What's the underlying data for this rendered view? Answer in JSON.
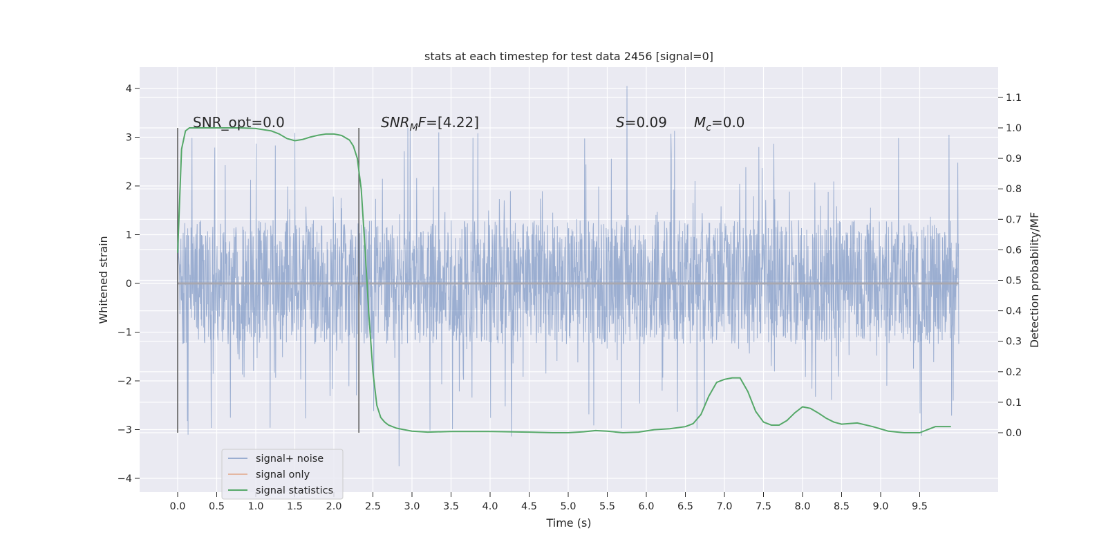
{
  "chart_data": {
    "type": "line",
    "title": "stats at each timestep for test data 2456 [signal=0]",
    "xlabel": "Time (s)",
    "ylabel_left": "Whitened strain",
    "ylabel_right": "Detection probability/MF",
    "xlim": [
      -0.48,
      10.48
    ],
    "ylim_left": [
      -4.35,
      4.35
    ],
    "ylim_right": [
      -0.2,
      1.19
    ],
    "x_ticks": [
      0.0,
      0.5,
      1.0,
      1.5,
      2.0,
      2.5,
      3.0,
      3.5,
      4.0,
      4.5,
      5.0,
      5.5,
      6.0,
      6.5,
      7.0,
      7.5,
      8.0,
      8.5,
      9.0,
      9.5
    ],
    "x_tick_labels": [
      "0.0",
      "0.5",
      "1.0",
      "1.5",
      "2.0",
      "2.5",
      "3.0",
      "3.5",
      "4.0",
      "4.5",
      "5.0",
      "5.5",
      "6.0",
      "6.5",
      "7.0",
      "7.5",
      "8.0",
      "8.5",
      "9.0",
      "9.5"
    ],
    "y_left_ticks": [
      -4,
      -3,
      -2,
      -1,
      0,
      1,
      2,
      3,
      4
    ],
    "y_left_tick_labels": [
      "−4",
      "−3",
      "−2",
      "−1",
      "0",
      "1",
      "2",
      "3",
      "4"
    ],
    "y_right_ticks": [
      0.0,
      0.1,
      0.2,
      0.3,
      0.4,
      0.5,
      0.6,
      0.7,
      0.8,
      0.9,
      1.0,
      1.1
    ],
    "y_right_tick_labels": [
      "0.0",
      "0.1",
      "0.2",
      "0.3",
      "0.4",
      "0.5",
      "0.6",
      "0.7",
      "0.8",
      "0.9",
      "1.0",
      "1.1"
    ],
    "grid": true,
    "legend_placement": "lower-left",
    "series": [
      {
        "name": "signal+ noise",
        "color": "#4c72b0",
        "kind": "noise",
        "time_range": [
          0.0,
          10.0
        ],
        "typical_range": [
          -1.25,
          1.3
        ],
        "max": 4.05,
        "min": -3.75
      },
      {
        "name": "signal only",
        "color": "#dd8452",
        "kind": "line",
        "x": [
          0.0,
          10.0
        ],
        "y": [
          0.0,
          0.0
        ]
      },
      {
        "name": "signal statistics",
        "color": "#55a868",
        "kind": "line",
        "axis": "right",
        "x": [
          0.0,
          0.05,
          0.1,
          0.15,
          0.25,
          0.4,
          0.6,
          0.8,
          1.0,
          1.2,
          1.3,
          1.4,
          1.5,
          1.6,
          1.7,
          1.8,
          1.9,
          2.0,
          2.1,
          2.2,
          2.25,
          2.3,
          2.35,
          2.4,
          2.45,
          2.5,
          2.55,
          2.6,
          2.65,
          2.7,
          2.8,
          2.9,
          3.0,
          3.2,
          3.5,
          4.0,
          4.5,
          4.8,
          5.0,
          5.2,
          5.35,
          5.5,
          5.7,
          5.9,
          6.1,
          6.3,
          6.5,
          6.6,
          6.7,
          6.8,
          6.9,
          7.0,
          7.1,
          7.2,
          7.3,
          7.4,
          7.5,
          7.6,
          7.7,
          7.8,
          7.9,
          8.0,
          8.1,
          8.2,
          8.3,
          8.4,
          8.5,
          8.6,
          8.7,
          8.9,
          9.1,
          9.3,
          9.5,
          9.6,
          9.7,
          9.8,
          9.9
        ],
        "y": [
          0.59,
          0.93,
          0.99,
          1.0,
          1.0,
          1.0,
          1.0,
          1.0,
          0.998,
          0.99,
          0.98,
          0.965,
          0.958,
          0.962,
          0.97,
          0.976,
          0.98,
          0.98,
          0.975,
          0.96,
          0.94,
          0.9,
          0.8,
          0.6,
          0.38,
          0.2,
          0.09,
          0.05,
          0.035,
          0.025,
          0.015,
          0.01,
          0.005,
          0.002,
          0.004,
          0.004,
          0.002,
          0.0,
          0.0,
          0.003,
          0.007,
          0.005,
          0.0,
          0.002,
          0.01,
          0.013,
          0.02,
          0.03,
          0.06,
          0.12,
          0.165,
          0.175,
          0.18,
          0.18,
          0.135,
          0.07,
          0.035,
          0.025,
          0.025,
          0.04,
          0.065,
          0.085,
          0.08,
          0.065,
          0.048,
          0.035,
          0.028,
          0.03,
          0.032,
          0.02,
          0.005,
          0.0,
          0.0,
          0.01,
          0.02,
          0.02,
          0.02
        ]
      }
    ],
    "vlines": [
      0.0,
      2.32
    ],
    "annotations": [
      {
        "kind": "plain",
        "text": "SNR_opt=0.0"
      },
      {
        "kind": "snrmf",
        "text": "SNR_MF=[4.22]",
        "var": "SNR",
        "sub": "M",
        "tail": "F=[4.22]"
      },
      {
        "kind": "italic",
        "text": "S=0.09",
        "var": "S",
        "rest": "=0.09"
      },
      {
        "kind": "sub",
        "text": "M_c=0.0",
        "var": "M",
        "sub": "c",
        "rest": "=0.0"
      }
    ]
  }
}
